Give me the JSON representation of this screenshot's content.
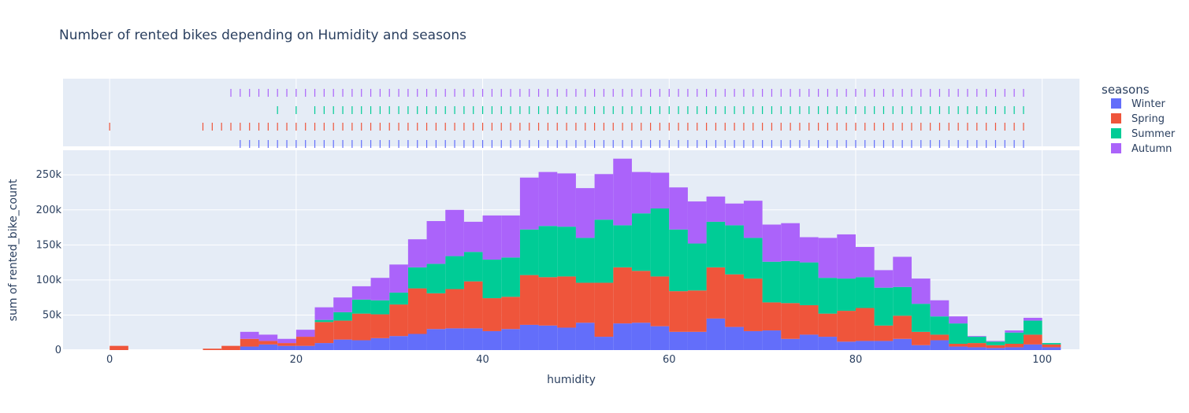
{
  "chart_data": {
    "type": "bar",
    "title": "Number of rented bikes depending on Humidity and seasons",
    "xlabel": "humidity",
    "ylabel": "sum of rented_bike_count",
    "xlim": [
      -5,
      104
    ],
    "ylim": [
      0,
      285000
    ],
    "x_ticks": [
      0,
      20,
      40,
      60,
      80,
      100
    ],
    "x_tick_labels": [
      "0",
      "20",
      "40",
      "60",
      "80",
      "100"
    ],
    "y_ticks": [
      0,
      50000,
      100000,
      150000,
      200000,
      250000
    ],
    "y_tick_labels": [
      "0",
      "50k",
      "100k",
      "150k",
      "200k",
      "250k"
    ],
    "bin_start": 0,
    "bin_width": 2,
    "barmode": "stack",
    "legend_title": "seasons",
    "legend_position": "right",
    "series": [
      {
        "name": "Winter",
        "color": "#636efa",
        "values": [
          0,
          0,
          0,
          0,
          0,
          0,
          0,
          5000,
          8000,
          6000,
          6000,
          10000,
          15000,
          14000,
          17000,
          20000,
          23000,
          30000,
          31000,
          31000,
          27000,
          30000,
          36000,
          35000,
          32000,
          39000,
          19000,
          38000,
          39000,
          34000,
          26000,
          26000,
          45000,
          33000,
          27000,
          28000,
          16000,
          22000,
          19000,
          12000,
          13000,
          13000,
          16000,
          7000,
          14000,
          5000,
          4000,
          3000,
          4000,
          8000,
          4000,
          0
        ]
      },
      {
        "name": "Spring",
        "color": "#ef553b",
        "values": [
          6000,
          0,
          0,
          0,
          0,
          2000,
          6000,
          11000,
          5000,
          4000,
          13000,
          30000,
          27000,
          38000,
          34000,
          45000,
          65000,
          51000,
          56000,
          67000,
          47000,
          46000,
          71000,
          69000,
          73000,
          57000,
          77000,
          80000,
          74000,
          71000,
          58000,
          59000,
          73000,
          75000,
          75000,
          40000,
          51000,
          42000,
          33000,
          44000,
          47000,
          22000,
          33000,
          19000,
          8000,
          4000,
          6000,
          4000,
          5000,
          14000,
          4000,
          0
        ]
      },
      {
        "name": "Summer",
        "color": "#00cc96",
        "values": [
          0,
          0,
          0,
          0,
          0,
          0,
          0,
          0,
          0,
          0,
          0,
          3000,
          12000,
          20000,
          20000,
          17000,
          30000,
          42000,
          47000,
          42000,
          55000,
          56000,
          65000,
          73000,
          71000,
          64000,
          90000,
          60000,
          82000,
          97000,
          88000,
          67000,
          65000,
          70000,
          58000,
          58000,
          60000,
          61000,
          51000,
          46000,
          44000,
          54000,
          41000,
          40000,
          26000,
          29000,
          9000,
          5000,
          16000,
          20000,
          2000,
          0
        ]
      },
      {
        "name": "Autumn",
        "color": "#ab63fa",
        "values": [
          0,
          0,
          0,
          0,
          0,
          0,
          0,
          10000,
          9000,
          6000,
          10000,
          18000,
          21000,
          19000,
          32000,
          40000,
          40000,
          61000,
          66000,
          43000,
          63000,
          60000,
          74000,
          77000,
          76000,
          71000,
          65000,
          95000,
          59000,
          51000,
          60000,
          60000,
          36000,
          31000,
          53000,
          53000,
          54000,
          36000,
          57000,
          63000,
          43000,
          25000,
          43000,
          36000,
          23000,
          10000,
          1000,
          1000,
          3000,
          4000,
          0,
          0
        ]
      }
    ],
    "rug_points": {
      "Winter": [
        14,
        15,
        16,
        17,
        18,
        19,
        20,
        21,
        22,
        23,
        24,
        25,
        26,
        27,
        28,
        29,
        30,
        31,
        32,
        33,
        34,
        35,
        36,
        37,
        38,
        39,
        40,
        41,
        42,
        43,
        44,
        45,
        46,
        47,
        48,
        49,
        50,
        51,
        52,
        53,
        54,
        55,
        56,
        57,
        58,
        59,
        60,
        61,
        62,
        63,
        64,
        65,
        66,
        67,
        68,
        69,
        70,
        71,
        72,
        73,
        74,
        75,
        76,
        77,
        78,
        79,
        80,
        81,
        82,
        83,
        84,
        85,
        86,
        87,
        88,
        89,
        90,
        91,
        92,
        93,
        94,
        95,
        96,
        97,
        98
      ],
      "Spring": [
        0,
        10,
        11,
        12,
        13,
        14,
        15,
        16,
        17,
        18,
        19,
        20,
        21,
        22,
        23,
        24,
        25,
        26,
        27,
        28,
        29,
        30,
        31,
        32,
        33,
        34,
        35,
        36,
        37,
        38,
        39,
        40,
        41,
        42,
        43,
        44,
        45,
        46,
        47,
        48,
        49,
        50,
        51,
        52,
        53,
        54,
        55,
        56,
        57,
        58,
        59,
        60,
        61,
        62,
        63,
        64,
        65,
        66,
        67,
        68,
        69,
        70,
        71,
        72,
        73,
        74,
        75,
        76,
        77,
        78,
        79,
        80,
        81,
        82,
        83,
        84,
        85,
        86,
        87,
        88,
        89,
        90,
        91,
        92,
        93,
        94,
        95,
        96,
        97,
        98
      ],
      "Summer": [
        18,
        20,
        22,
        23,
        24,
        25,
        26,
        27,
        28,
        29,
        30,
        31,
        32,
        33,
        34,
        35,
        36,
        37,
        38,
        39,
        40,
        41,
        42,
        43,
        44,
        45,
        46,
        47,
        48,
        49,
        50,
        51,
        52,
        53,
        54,
        55,
        56,
        57,
        58,
        59,
        60,
        61,
        62,
        63,
        64,
        65,
        66,
        67,
        68,
        69,
        70,
        71,
        72,
        73,
        74,
        75,
        76,
        77,
        78,
        79,
        80,
        81,
        82,
        83,
        84,
        85,
        86,
        87,
        88,
        89,
        90,
        91,
        92,
        93,
        94,
        95,
        96,
        97,
        98
      ],
      "Autumn": [
        13,
        14,
        15,
        16,
        17,
        18,
        19,
        20,
        21,
        22,
        23,
        24,
        25,
        26,
        27,
        28,
        29,
        30,
        31,
        32,
        33,
        34,
        35,
        36,
        37,
        38,
        39,
        40,
        41,
        42,
        43,
        44,
        45,
        46,
        47,
        48,
        49,
        50,
        51,
        52,
        53,
        54,
        55,
        56,
        57,
        58,
        59,
        60,
        61,
        62,
        63,
        64,
        65,
        66,
        67,
        68,
        69,
        70,
        71,
        72,
        73,
        74,
        75,
        76,
        77,
        78,
        79,
        80,
        81,
        82,
        83,
        84,
        85,
        86,
        87,
        88,
        89,
        90,
        91,
        92,
        93,
        94,
        95,
        96,
        97,
        98
      ]
    }
  }
}
